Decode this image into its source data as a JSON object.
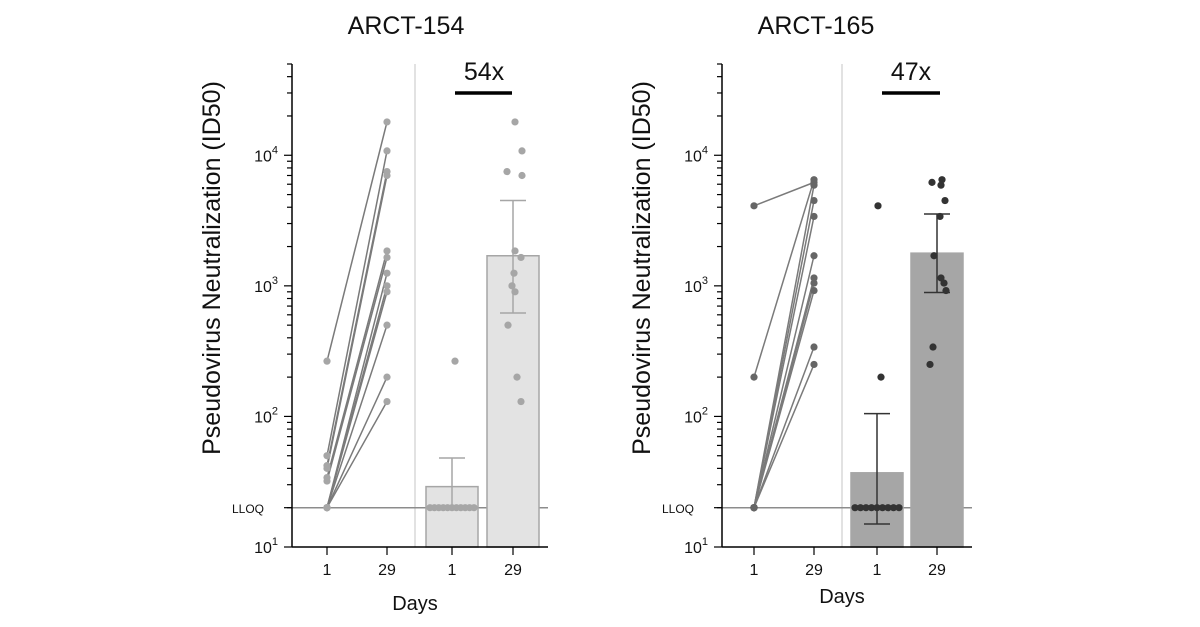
{
  "chart_data": [
    {
      "type": "scatter",
      "title": "ARCT-154",
      "ylabel": "Pseudovirus Neutralization (ID50)",
      "xlabel": "Days",
      "yscale": "log",
      "ylim": [
        10,
        50000
      ],
      "lloq": 20,
      "lloq_label": "LLOQ",
      "ytick_labels": [
        {
          "value": 10,
          "base": "10",
          "exp": "1"
        },
        {
          "value": 100,
          "base": "10",
          "exp": "2"
        },
        {
          "value": 1000,
          "base": "10",
          "exp": "3"
        },
        {
          "value": 10000,
          "base": "10",
          "exp": "4"
        }
      ],
      "xtick_labels": [
        "1",
        "29",
        "1",
        "29"
      ],
      "fold_label": "54x",
      "colors": {
        "points": "#a6a6a6",
        "lines": "#7a7a7a",
        "bar_fill": "#e3e3e3",
        "bar_edge": "#a6a6a6",
        "errbar": "#a6a6a6"
      },
      "paired": {
        "day1": [
          265,
          50,
          42,
          40,
          34,
          32,
          20,
          20,
          20,
          20,
          20,
          20
        ],
        "day29": [
          18000,
          10800,
          7500,
          7000,
          1850,
          1650,
          1250,
          1000,
          900,
          500,
          200,
          130
        ]
      },
      "bars": [
        {
          "day": "1",
          "mean": 29,
          "err_low": 20,
          "err_high": 48,
          "points": [
            265,
            20,
            20,
            20,
            20,
            20,
            20,
            20,
            20,
            20,
            20,
            20
          ]
        },
        {
          "day": "29",
          "mean": 1700,
          "err_low": 620,
          "err_high": 4500,
          "points": [
            18000,
            10800,
            7500,
            7000,
            1850,
            1650,
            1250,
            1000,
            900,
            500,
            200,
            130
          ]
        }
      ]
    },
    {
      "type": "scatter",
      "title": "ARCT-165",
      "ylabel": "Pseudovirus Neutralization (ID50)",
      "xlabel": "Days",
      "yscale": "log",
      "ylim": [
        10,
        50000
      ],
      "lloq": 20,
      "lloq_label": "LLOQ",
      "ytick_labels": [
        {
          "value": 10,
          "base": "10",
          "exp": "1"
        },
        {
          "value": 100,
          "base": "10",
          "exp": "2"
        },
        {
          "value": 1000,
          "base": "10",
          "exp": "3"
        },
        {
          "value": 10000,
          "base": "10",
          "exp": "4"
        }
      ],
      "xtick_labels": [
        "1",
        "29",
        "1",
        "29"
      ],
      "fold_label": "47x",
      "colors": {
        "points": "#666666",
        "lines": "#7a7a7a",
        "bar_fill": "#a6a6a6",
        "bar_edge": "#a6a6a6",
        "errbar": "#333333",
        "bar_points": "#333333"
      },
      "paired": {
        "day1": [
          4100,
          200,
          20,
          20,
          20,
          20,
          20,
          20,
          20,
          20,
          20
        ],
        "day29": [
          6200,
          6500,
          5900,
          4500,
          3400,
          1700,
          1150,
          1050,
          920,
          340,
          250
        ]
      },
      "bars": [
        {
          "day": "1",
          "mean": 37,
          "err_low": 15,
          "err_high": 105,
          "points": [
            4100,
            200,
            20,
            20,
            20,
            20,
            20,
            20,
            20,
            20,
            20
          ]
        },
        {
          "day": "29",
          "mean": 1780,
          "err_low": 890,
          "err_high": 3550,
          "points": [
            6500,
            6200,
            5900,
            4500,
            3400,
            1700,
            1150,
            1050,
            920,
            340,
            250
          ]
        }
      ]
    }
  ]
}
